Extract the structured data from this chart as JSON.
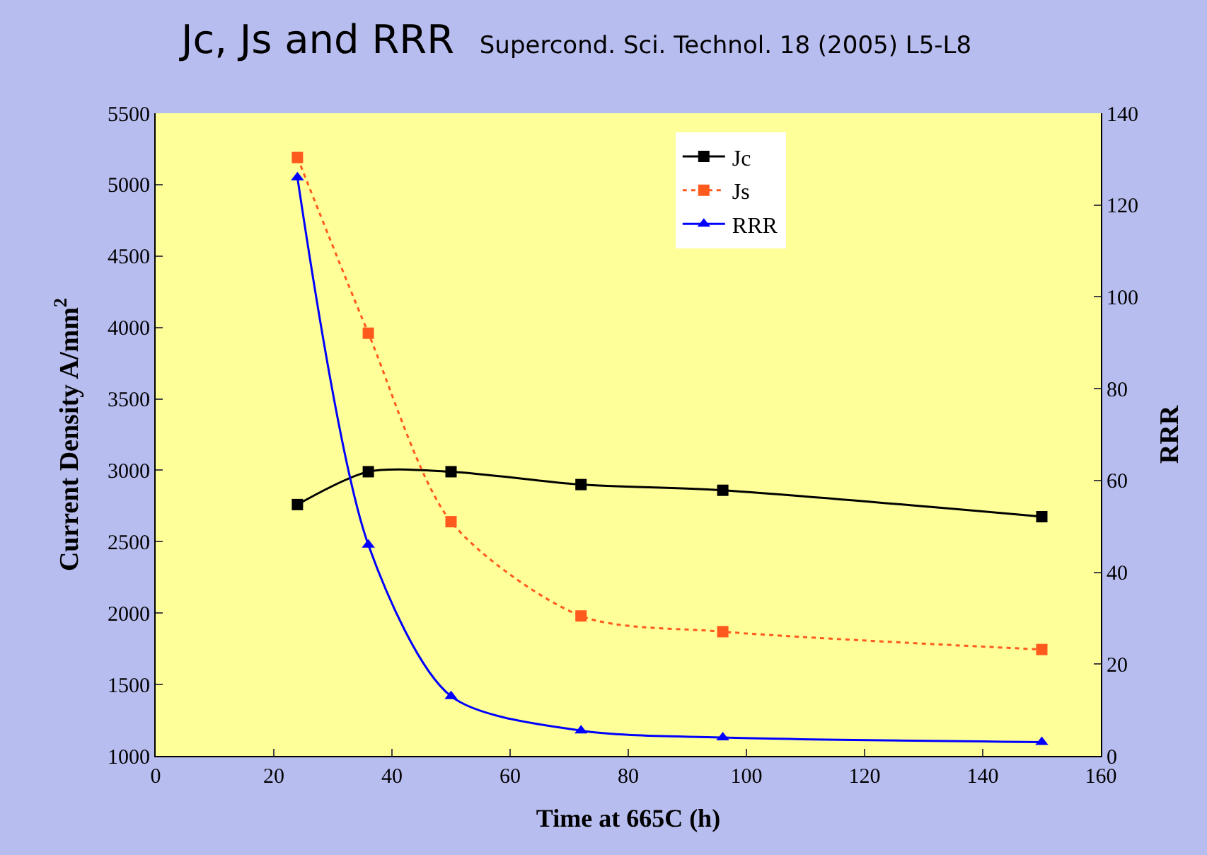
{
  "chart_data": {
    "type": "line",
    "title": "Jc, Js and RRR",
    "subtitle": "Supercond. Sci. Technol. 18 (2005) L5-L8",
    "xlabel": "Time at 665C (h)",
    "ylabel": "Current Density A/mm$^{2}$",
    "y2label": "RRR",
    "x": [
      24,
      36,
      50,
      72,
      96,
      150
    ],
    "series": [
      {
        "name": "Jc",
        "color": "#000000",
        "values": [
          2760,
          2990,
          2990,
          2900,
          2860,
          2675
        ],
        "marker": "square",
        "line_style": "solid"
      },
      {
        "name": "Js",
        "color": "#ff5a1e",
        "values": [
          5190,
          3960,
          2640,
          1980,
          1870,
          1745
        ],
        "marker": "square",
        "line_style": "dotted"
      },
      {
        "name": "RRR",
        "color": "#0000ff",
        "values": [
          126,
          46,
          13,
          5.5,
          4,
          3
        ],
        "marker": "triangle",
        "line_style": "solid",
        "axis": "y2"
      }
    ],
    "xlim": [
      0,
      160
    ],
    "xticks": [
      0,
      20,
      40,
      60,
      80,
      100,
      120,
      140,
      160
    ],
    "ylim": [
      1000,
      5500
    ],
    "yticks": [
      1000,
      1500,
      2000,
      2500,
      3000,
      3500,
      4000,
      4500,
      5000,
      5500
    ],
    "y2lim": [
      0,
      140
    ],
    "y2ticks": [
      0,
      20,
      40,
      60,
      80,
      100,
      120,
      140
    ],
    "grid": false,
    "legend": "top right"
  }
}
